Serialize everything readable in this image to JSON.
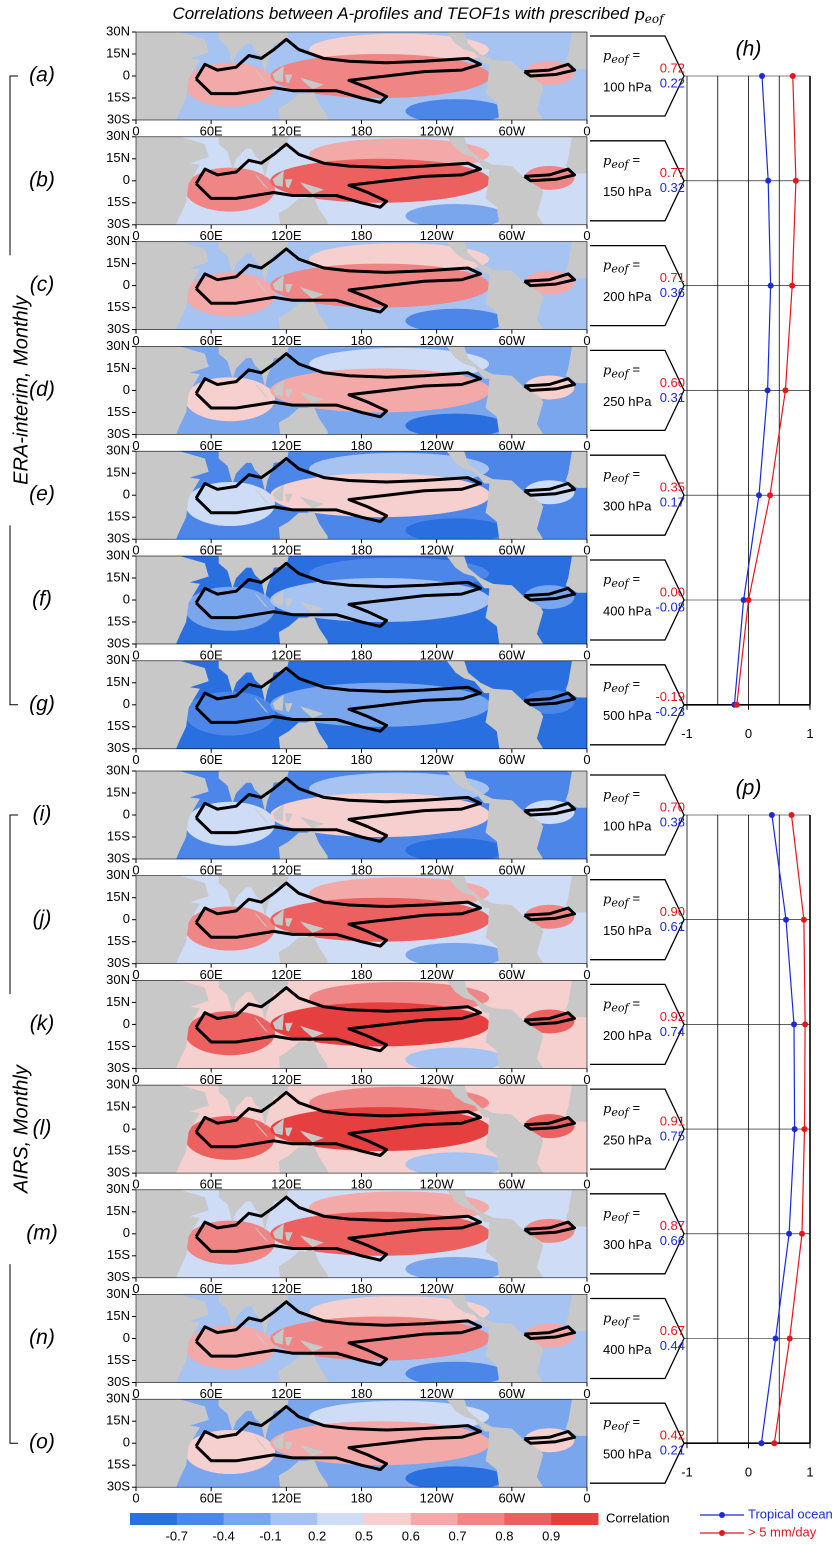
{
  "title": {
    "text": "Correlations between A-profiles and TEOF1s with prescribed",
    "symbol": "p",
    "symbol_sub": "eof"
  },
  "chart_data": [
    {
      "type": "map",
      "groups": [
        {
          "label": "ERA-interim, Monthly",
          "panels": [
            "(a)",
            "(b)",
            "(c)",
            "(d)",
            "(e)",
            "(f)",
            "(g)"
          ]
        },
        {
          "label": "AIRS, Monthly",
          "panels": [
            "(i)",
            "(j)",
            "(k)",
            "(l)",
            "(m)",
            "(n)",
            "(o)"
          ]
        }
      ],
      "equals": "=",
      "latlim": [
        -30,
        30
      ],
      "lonlim": [
        0,
        360
      ],
      "lat_ticks": [
        {
          "value": 30,
          "label": "30N"
        },
        {
          "value": 15,
          "label": "15N"
        },
        0,
        {
          "value": -15,
          "label": "15S"
        },
        {
          "value": -30,
          "label": "30S"
        }
      ],
      "lon_ticks": [
        0,
        {
          "value": 60,
          "label": "60E"
        },
        {
          "value": 120,
          "label": "120E"
        },
        180,
        {
          "value": 240,
          "label": "120W"
        },
        {
          "value": 300,
          "label": "60W"
        },
        {
          "value": 360,
          "label": "0"
        }
      ],
      "colorbar": {
        "label": "Correlation",
        "colors": [
          "#2a6fe0",
          "#4c86e8",
          "#7aa6ee",
          "#a6c3f2",
          "#cfdcf6",
          "#f6cfcf",
          "#f4a9a9",
          "#f08585",
          "#ec6060",
          "#e63f3f"
        ],
        "ticks": [
          -0.7,
          -0.4,
          -0.1,
          0.2,
          0.5,
          0.6,
          0.7,
          0.8,
          0.9
        ]
      }
    },
    {
      "type": "line",
      "title": "(h)",
      "categories": [
        "100 hPa",
        "150 hPa",
        "200 hPa",
        "250 hPa",
        "300 hPa",
        "400 hPa",
        "500 hPa"
      ],
      "xlim": [
        -1,
        1
      ],
      "xticks": [
        -1,
        0,
        1
      ],
      "xgrid": [
        -1,
        -0.5,
        0,
        0.5,
        1
      ],
      "series": [
        {
          "color": "#1a2ad8",
          "values": [
            0.22,
            0.32,
            0.36,
            0.31,
            0.17,
            -0.08,
            -0.23
          ],
          "value_labels": [
            "0.22",
            "0.32",
            "0.36",
            "0.31",
            "0.17",
            "-0.08",
            "-0.23"
          ]
        },
        {
          "color": "#e8141c",
          "values": [
            0.72,
            0.77,
            0.71,
            0.6,
            0.35,
            0.0,
            -0.19
          ],
          "value_labels": [
            "0.72",
            "0.77",
            "0.71",
            "0.60",
            "0.35",
            "0.00",
            "-0.19"
          ]
        }
      ]
    },
    {
      "type": "line",
      "title": "(p)",
      "categories": [
        "100 hPa",
        "150 hPa",
        "200 hPa",
        "250 hPa",
        "300 hPa",
        "400 hPa",
        "500 hPa"
      ],
      "xlim": [
        -1,
        1
      ],
      "xticks": [
        -1,
        0,
        1
      ],
      "xgrid": [
        -1,
        -0.5,
        0,
        0.5,
        1
      ],
      "series": [
        {
          "name": "Tropical ocean",
          "color": "#1a2ad8",
          "values": [
            0.38,
            0.61,
            0.74,
            0.75,
            0.66,
            0.44,
            0.21
          ],
          "value_labels": [
            "0.38",
            "0.61",
            "0.74",
            "0.75",
            "0.66",
            "0.44",
            "0.21"
          ]
        },
        {
          "name": "> 5 mm/day",
          "color": "#e8141c",
          "values": [
            0.7,
            0.9,
            0.92,
            0.91,
            0.87,
            0.67,
            0.42
          ],
          "value_labels": [
            "0.70",
            "0.90",
            "0.92",
            "0.91",
            "0.87",
            "0.67",
            "0.42"
          ]
        }
      ]
    }
  ]
}
